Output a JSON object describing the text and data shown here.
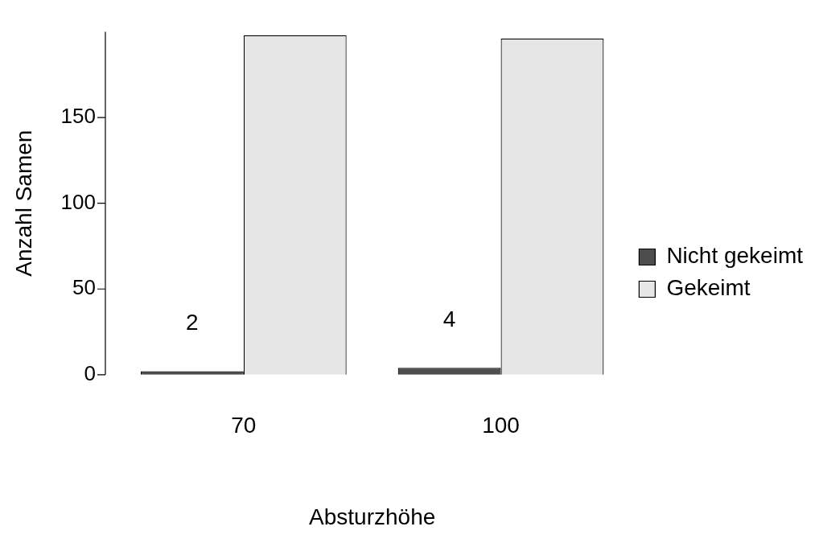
{
  "chart_data": {
    "type": "bar",
    "xlabel": "Absturzhöhe",
    "ylabel": "Anzahl Samen",
    "categories": [
      "70",
      "100"
    ],
    "series": [
      {
        "name": "Nicht gekeimt",
        "color": "#4d4d4d",
        "values": [
          2,
          4
        ],
        "value_labels": [
          "2",
          "4"
        ]
      },
      {
        "name": "Gekeimt",
        "color": "#e6e6e6",
        "values": [
          198,
          196
        ]
      }
    ],
    "ylim": [
      0,
      200
    ],
    "yticks": [
      0,
      50,
      100,
      150
    ],
    "grid": false,
    "legend": "right"
  }
}
